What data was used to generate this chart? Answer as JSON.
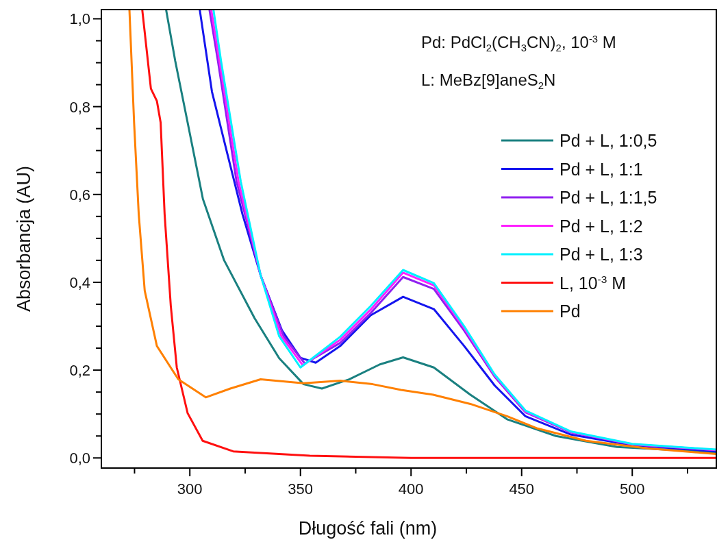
{
  "chart_data": {
    "type": "line",
    "xlabel": "Długość fali (nm)",
    "ylabel": "Absorbancja (AU)",
    "annotations": [
      "Pd: PdCl$_{2}$(CH$_{3}$CN)$_{2}$, 10$^{-3}$ M",
      "L: MeBz[9]aneS$_{2}$N"
    ],
    "xlim": [
      260,
      538
    ],
    "ylim": [
      -0.023,
      1.021
    ],
    "xticks": [
      {
        "value": 275,
        "label": null
      },
      300,
      {
        "value": 325,
        "label": null
      },
      350,
      {
        "value": 375,
        "label": null
      },
      400,
      {
        "value": 425,
        "label": null
      },
      450,
      {
        "value": 475,
        "label": null
      },
      500,
      {
        "value": 525,
        "label": null
      }
    ],
    "yticks": [
      {
        "value": 0,
        "label": "0,0"
      },
      {
        "value": 0.05,
        "label": null
      },
      {
        "value": 0.1,
        "label": null
      },
      {
        "value": 0.15,
        "label": null
      },
      {
        "value": 0.2,
        "label": "0,2"
      },
      {
        "value": 0.25,
        "label": null
      },
      {
        "value": 0.3,
        "label": null
      },
      {
        "value": 0.35,
        "label": null
      },
      {
        "value": 0.4,
        "label": "0,4"
      },
      {
        "value": 0.45,
        "label": null
      },
      {
        "value": 0.5,
        "label": null
      },
      {
        "value": 0.55,
        "label": null
      },
      {
        "value": 0.6,
        "label": "0,6"
      },
      {
        "value": 0.65,
        "label": null
      },
      {
        "value": 0.7,
        "label": null
      },
      {
        "value": 0.75,
        "label": null
      },
      {
        "value": 0.8,
        "label": "0,8"
      },
      {
        "value": 0.85,
        "label": null
      },
      {
        "value": 0.9,
        "label": null
      },
      {
        "value": 0.95,
        "label": null
      },
      {
        "value": 1.0,
        "label": "1,0"
      }
    ],
    "grid": false,
    "legend": "right",
    "line_style": "solid",
    "series": [
      {
        "name": "Pd + L, 1:0,5",
        "color": "#1a8080",
        "x": [
          289.3,
          293.4,
          299,
          305.9,
          315.5,
          329.3,
          340.4,
          351.4,
          359.7,
          372,
          385.9,
          396.4,
          410.3,
          426.8,
          443.4,
          465.5,
          493.1,
          538
        ],
        "values": [
          1.02,
          0.904,
          0.764,
          0.59,
          0.45,
          0.318,
          0.227,
          0.168,
          0.158,
          0.179,
          0.213,
          0.229,
          0.206,
          0.144,
          0.088,
          0.05,
          0.025,
          0.013
        ]
      },
      {
        "name": "Pd + L, 1:1",
        "color": "#1515ee",
        "x": [
          304.5,
          310,
          316.9,
          323.8,
          332,
          341.7,
          350,
          356.9,
          368,
          381.8,
          396.4,
          410.3,
          424,
          437.8,
          451.7,
          472.4,
          500,
          538
        ],
        "values": [
          1.02,
          0.834,
          0.694,
          0.555,
          0.416,
          0.29,
          0.228,
          0.217,
          0.255,
          0.325,
          0.367,
          0.339,
          0.255,
          0.165,
          0.095,
          0.053,
          0.029,
          0.015
        ]
      },
      {
        "name": "Pd + L, 1:1,5",
        "color": "#9020f0",
        "x": [
          308.9,
          312.7,
          321.1,
          332,
          342.4,
          352,
          368,
          381.8,
          396.4,
          410.3,
          424,
          437.8,
          451.7,
          472.4,
          500,
          538
        ],
        "values": [
          1.02,
          0.904,
          0.63,
          0.416,
          0.277,
          0.215,
          0.262,
          0.33,
          0.412,
          0.385,
          0.29,
          0.185,
          0.104,
          0.058,
          0.031,
          0.018
        ]
      },
      {
        "name": "Pd + L, 1:2",
        "color": "#ff20ff",
        "x": [
          309.7,
          313.4,
          322,
          332,
          341.4,
          351.1,
          368,
          381.8,
          396.4,
          410.3,
          424,
          437.8,
          451.7,
          472.4,
          500,
          538
        ],
        "values": [
          1.02,
          0.904,
          0.63,
          0.416,
          0.277,
          0.211,
          0.269,
          0.338,
          0.422,
          0.393,
          0.296,
          0.188,
          0.106,
          0.059,
          0.031,
          0.018
        ]
      },
      {
        "name": "Pd + L, 1:3",
        "color": "#00f0ff",
        "x": [
          310.7,
          314.1,
          323,
          332,
          340.4,
          350,
          368,
          381.8,
          396.4,
          410.3,
          424,
          437.8,
          451.7,
          472.4,
          500,
          538
        ],
        "values": [
          1.02,
          0.904,
          0.63,
          0.416,
          0.277,
          0.206,
          0.276,
          0.346,
          0.428,
          0.398,
          0.3,
          0.19,
          0.108,
          0.06,
          0.032,
          0.019
        ]
      },
      {
        "name": "L, 10$^{-3}$ M",
        "color": "#ff1010",
        "x": [
          278.5,
          282.4,
          285.1,
          286.8,
          288.6,
          291.4,
          294.1,
          299,
          305.8,
          319.6,
          354.2,
          400,
          538
        ],
        "values": [
          1.02,
          0.841,
          0.813,
          0.764,
          0.555,
          0.346,
          0.206,
          0.102,
          0.039,
          0.015,
          0.005,
          0.0,
          0.0
        ]
      },
      {
        "name": "Pd",
        "color": "#ff8000",
        "x": [
          272.7,
          274.8,
          276.9,
          279.6,
          285.1,
          294.8,
          307.2,
          318.3,
          332,
          351.4,
          368,
          382.6,
          395.5,
          410,
          426.8,
          443.4,
          457.2,
          479.2,
          506.9,
          538
        ],
        "values": [
          1.02,
          0.764,
          0.555,
          0.381,
          0.255,
          0.179,
          0.138,
          0.158,
          0.179,
          0.17,
          0.176,
          0.168,
          0.155,
          0.144,
          0.123,
          0.095,
          0.067,
          0.039,
          0.022,
          0.009
        ]
      }
    ]
  }
}
